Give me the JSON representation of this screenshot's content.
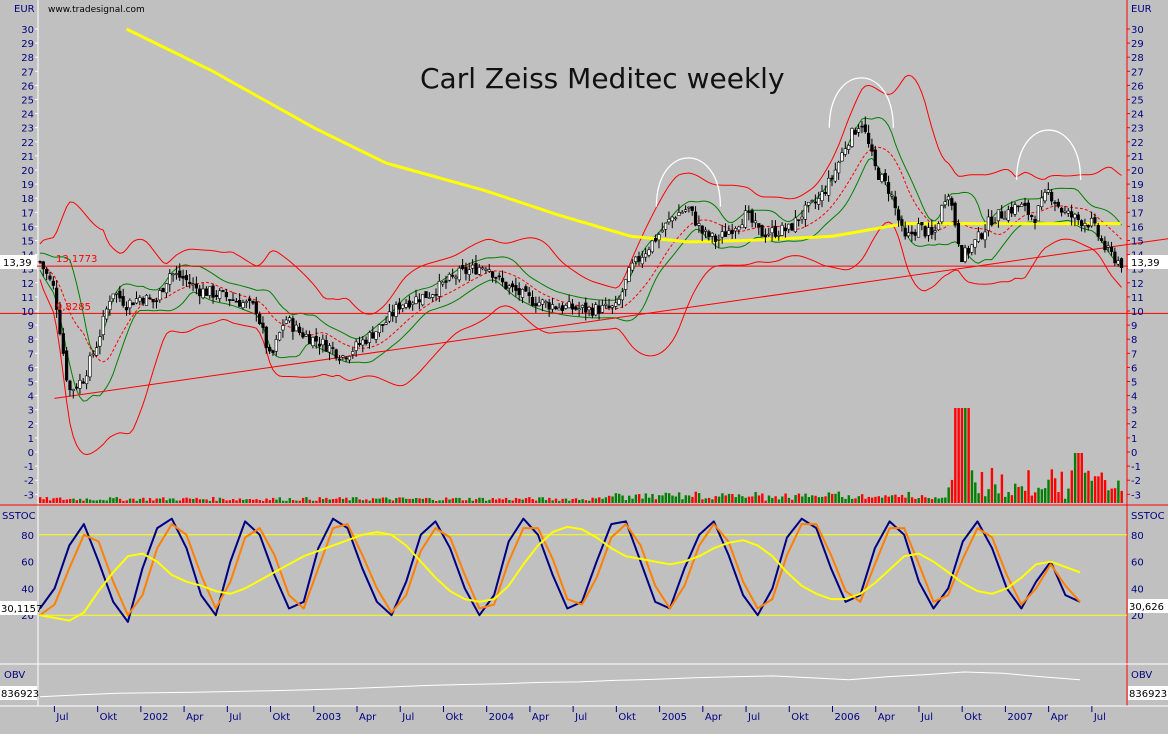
{
  "header": {
    "source": "www.tradesignal.com"
  },
  "chart_data": [
    {
      "id": "price",
      "type": "candlestick",
      "title": "Carl Zeiss Meditec weekly",
      "currency": "EUR",
      "ylim": [
        -3.5,
        31
      ],
      "y_ticks": [
        30,
        29,
        28,
        27,
        26,
        25,
        24,
        23,
        22,
        21,
        20,
        19,
        18,
        17,
        16,
        15,
        14,
        13,
        12,
        11,
        10,
        9,
        8,
        7,
        6,
        5,
        4,
        3,
        2,
        1,
        0,
        -1,
        -2,
        -3
      ],
      "last_value": "13,39",
      "level_lines": [
        {
          "label": "13,1773",
          "value": 13.18
        },
        {
          "label": "9,8285",
          "value": 9.83
        }
      ],
      "trendlines": [
        {
          "from": [
            "2001-07",
            3.8
          ],
          "to": [
            "2007-09",
            14.8
          ]
        }
      ],
      "price_path": [
        [
          "2001-06",
          13.5
        ],
        [
          "2001-07",
          11.5
        ],
        [
          "2001-08",
          4.3
        ],
        [
          "2001-09",
          5.2
        ],
        [
          "2001-10",
          7.8
        ],
        [
          "2001-11",
          11.5
        ],
        [
          "2001-12",
          10.5
        ],
        [
          "2002-01",
          11.0
        ],
        [
          "2002-02",
          10.6
        ],
        [
          "2002-03",
          12.7
        ],
        [
          "2002-04",
          12.3
        ],
        [
          "2002-05",
          11.5
        ],
        [
          "2002-07",
          11.0
        ],
        [
          "2002-09",
          10.2
        ],
        [
          "2002-10",
          6.5
        ],
        [
          "2002-11",
          9.5
        ],
        [
          "2002-12",
          8.5
        ],
        [
          "2003-02",
          7.5
        ],
        [
          "2003-03",
          6.8
        ],
        [
          "2003-04",
          7.5
        ],
        [
          "2003-06",
          9.2
        ],
        [
          "2003-07",
          10.5
        ],
        [
          "2003-09",
          11.2
        ],
        [
          "2003-11",
          12.6
        ],
        [
          "2004-01",
          13.3
        ],
        [
          "2004-02",
          12.0
        ],
        [
          "2004-04",
          10.8
        ],
        [
          "2004-06",
          10.3
        ],
        [
          "2004-08",
          10.1
        ],
        [
          "2004-10",
          10.2
        ],
        [
          "2004-11",
          13.0
        ],
        [
          "2005-01",
          15.5
        ],
        [
          "2005-02",
          16.8
        ],
        [
          "2005-03",
          17.3
        ],
        [
          "2005-04",
          15.5
        ],
        [
          "2005-05",
          15.0
        ],
        [
          "2005-07",
          16.8
        ],
        [
          "2005-08",
          15.5
        ],
        [
          "2005-10",
          15.8
        ],
        [
          "2005-11",
          17.0
        ],
        [
          "2005-12",
          17.8
        ],
        [
          "2006-01",
          19.5
        ],
        [
          "2006-02",
          22.0
        ],
        [
          "2006-03",
          23.5
        ],
        [
          "2006-04",
          20.0
        ],
        [
          "2006-05",
          18.5
        ],
        [
          "2006-06",
          15.0
        ],
        [
          "2006-07",
          16.0
        ],
        [
          "2006-08",
          15.2
        ],
        [
          "2006-09",
          18.8
        ],
        [
          "2006-10",
          13.8
        ],
        [
          "2006-11",
          15.0
        ],
        [
          "2006-12",
          16.5
        ],
        [
          "2007-02",
          17.5
        ],
        [
          "2007-03",
          16.6
        ],
        [
          "2007-04",
          18.5
        ],
        [
          "2007-05",
          17.0
        ],
        [
          "2007-06",
          16.5
        ],
        [
          "2007-07",
          16.2
        ],
        [
          "2007-08",
          14.3
        ],
        [
          "2007-09",
          13.39
        ]
      ],
      "moving_average_200": [
        [
          "2001-12",
          30.0
        ],
        [
          "2002-06",
          27.0
        ],
        [
          "2003-01",
          23.0
        ],
        [
          "2003-06",
          20.5
        ],
        [
          "2004-01",
          18.5
        ],
        [
          "2004-06",
          16.8
        ],
        [
          "2004-11",
          15.3
        ],
        [
          "2005-03",
          14.9
        ],
        [
          "2005-07",
          15.0
        ],
        [
          "2006-01",
          15.3
        ],
        [
          "2006-06",
          16.2
        ],
        [
          "2007-01",
          16.2
        ],
        [
          "2007-09",
          16.2
        ]
      ],
      "annotations": [
        {
          "type": "arc",
          "center": "2005-03",
          "top": 21.3,
          "bottom": 17.4
        },
        {
          "type": "arc",
          "center": "2006-03",
          "top": 27.0,
          "bottom": 23.0
        },
        {
          "type": "arc",
          "center": "2007-04",
          "top": 23.3,
          "bottom": 19.3
        }
      ],
      "colors": {
        "price": "#000000",
        "upper_band": "#ff0000",
        "lower_band": "#ff0000",
        "inner_band": "#008000",
        "ma200": "#ffff00",
        "level_line": "#ff0000"
      }
    },
    {
      "id": "sstoc",
      "type": "line",
      "label": "SSTOC",
      "ylim": [
        0,
        100
      ],
      "y_ticks": [
        80,
        60,
        40,
        20
      ],
      "reference_lines": [
        80,
        20
      ],
      "last_value_left": "30,1157",
      "last_value_right": "30,626",
      "series": [
        {
          "color": "#000080",
          "values": [
            25,
            40,
            72,
            88,
            60,
            30,
            15,
            55,
            85,
            92,
            70,
            35,
            20,
            60,
            90,
            80,
            50,
            25,
            30,
            70,
            92,
            85,
            55,
            30,
            20,
            45,
            80,
            90,
            70,
            40,
            20,
            35,
            75,
            92,
            80,
            50,
            25,
            30,
            60,
            88,
            90,
            60,
            30,
            25,
            55,
            80,
            90,
            65,
            35,
            20,
            40,
            78,
            92,
            85,
            55,
            30,
            35,
            70,
            90,
            80,
            45,
            25,
            40,
            75,
            90,
            70,
            40,
            25,
            45,
            60,
            35,
            30
          ]
        },
        {
          "color": "#ff8000",
          "values": [
            20,
            28,
            55,
            80,
            75,
            45,
            20,
            35,
            70,
            88,
            80,
            50,
            25,
            45,
            78,
            85,
            65,
            35,
            25,
            55,
            85,
            88,
            65,
            40,
            22,
            35,
            68,
            85,
            78,
            50,
            25,
            28,
            60,
            85,
            85,
            62,
            32,
            28,
            48,
            78,
            88,
            72,
            42,
            25,
            42,
            72,
            88,
            75,
            45,
            25,
            32,
            65,
            88,
            88,
            65,
            38,
            30,
            58,
            85,
            85,
            58,
            30,
            35,
            62,
            85,
            78,
            50,
            28,
            40,
            58,
            42,
            30
          ]
        },
        {
          "color": "#ffff00",
          "values": [
            20,
            18,
            16,
            22,
            38,
            52,
            64,
            66,
            60,
            50,
            45,
            42,
            38,
            36,
            40,
            46,
            52,
            58,
            64,
            68,
            72,
            76,
            80,
            82,
            80,
            72,
            60,
            48,
            38,
            32,
            30,
            32,
            42,
            58,
            72,
            82,
            86,
            84,
            78,
            70,
            64,
            62,
            60,
            58,
            60,
            64,
            70,
            74,
            76,
            72,
            64,
            52,
            42,
            36,
            32,
            32,
            36,
            44,
            54,
            64,
            66,
            60,
            52,
            44,
            38,
            36,
            40,
            48,
            58,
            60,
            56,
            52
          ]
        }
      ]
    },
    {
      "id": "obv",
      "type": "line",
      "label": "OBV",
      "last_value_left": "836923",
      "last_value_right": "836923",
      "series": [
        {
          "color": "#ffffff",
          "values": [
            0.05,
            0.12,
            0.18,
            0.2,
            0.22,
            0.25,
            0.28,
            0.32,
            0.36,
            0.42,
            0.48,
            0.52,
            0.55,
            0.6,
            0.62,
            0.68,
            0.72,
            0.78,
            0.82,
            0.85,
            0.78,
            0.7,
            0.82,
            0.9,
            1.0,
            0.95,
            0.82,
            0.7
          ]
        }
      ]
    }
  ],
  "x_axis": {
    "labels": [
      "Jul",
      "Okt",
      "2002",
      "Apr",
      "Jul",
      "Okt",
      "2003",
      "Apr",
      "Jul",
      "Okt",
      "2004",
      "Apr",
      "Jul",
      "Okt",
      "2005",
      "Apr",
      "Jul",
      "Okt",
      "2006",
      "Apr",
      "Jul",
      "Okt",
      "2007",
      "Apr",
      "Jul"
    ],
    "start": "2001-06",
    "end": "2007-09"
  }
}
